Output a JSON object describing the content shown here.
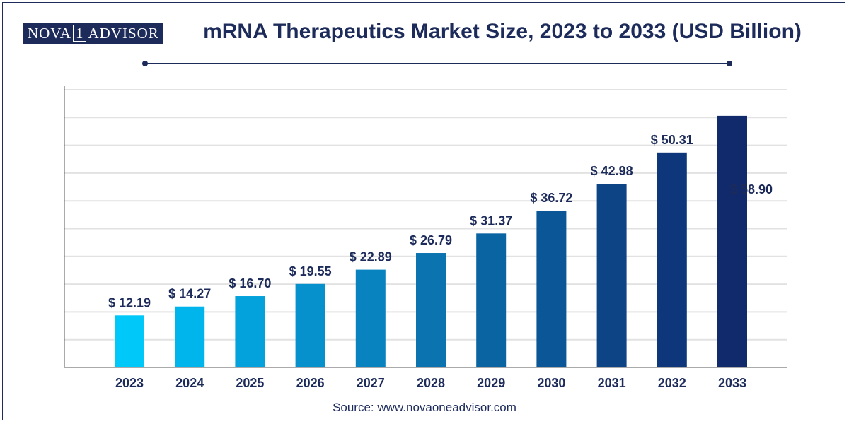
{
  "brand": {
    "logo_left": "NOVA",
    "logo_mid": "1",
    "logo_right": "ADVISOR",
    "navy": "#1c2b5a"
  },
  "header": {
    "title": "mRNA Therapeutics Market Size, 2023 to 2033 (USD Billion)"
  },
  "footer": {
    "source": "Source: www.novaoneadvisor.com"
  },
  "chart_data": {
    "type": "bar",
    "title": "mRNA Therapeutics Market Size, 2023 to 2033 (USD Billion)",
    "xlabel": "",
    "ylabel": "",
    "categories": [
      "2023",
      "2024",
      "2025",
      "2026",
      "2027",
      "2028",
      "2029",
      "2030",
      "2031",
      "2032",
      "2033"
    ],
    "values": [
      12.19,
      14.27,
      16.7,
      19.55,
      22.89,
      26.79,
      31.37,
      36.72,
      42.98,
      50.31,
      58.9
    ],
    "data_labels": [
      "$ 12.19",
      "$ 14.27",
      "$ 16.70",
      "$ 19.55",
      "$ 22.89",
      "$ 26.79",
      "$ 31.37",
      "$ 36.72",
      "$ 42.98",
      "$ 50.31",
      "$ 58.90"
    ],
    "ylim": [
      0,
      65
    ],
    "grid": true,
    "legend": "none",
    "bar_colors": [
      "#00c8f8",
      "#00b4ec",
      "#03a2dc",
      "#0691cc",
      "#0883c0",
      "#0a73b0",
      "#0a64a2",
      "#0b5696",
      "#0d4486",
      "#0e367a",
      "#102a6c"
    ],
    "label_color": "#1c2b5a"
  }
}
